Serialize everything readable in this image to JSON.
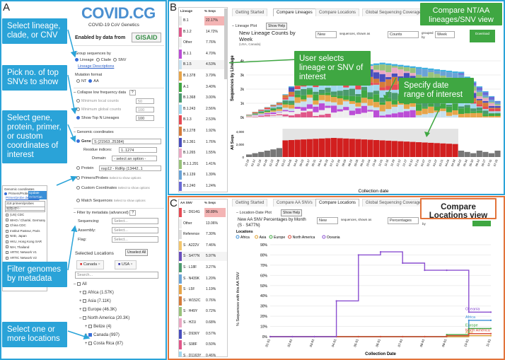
{
  "labels": {
    "A": "A",
    "B": "B",
    "C": "C"
  },
  "callouts": {
    "c1": "Select lineage, clade, or CNV",
    "c2": "Pick no. of top SNVs to show",
    "c3": "Select gene, protein, primer, or custom coordinates of interest",
    "c4": "Filter genomes by metadata",
    "c5": "Select one or more locations",
    "b1": "Compare NT/AA lineages/SNV view",
    "b2": "User selects lineage or SNV of interest",
    "b3": "Specify date range of interest",
    "c6": "Compare Locations view"
  },
  "sidebar": {
    "logo": "COVID.CG",
    "subtitle": "COVID-19 CoV Genetics",
    "enabled_by": "Enabled by data from",
    "gisaid": "GISAID",
    "group_by": "Group sequences by",
    "group_opts": [
      "Lineage",
      "Clade",
      "SNV"
    ],
    "lineage_desc": "Lineage Descriptions",
    "mutation_format": "Mutation format",
    "mut_opts": [
      "NT",
      "AA"
    ],
    "collapse": "Collapse low frequency data",
    "min_local": "Minimum local counts",
    "min_local_val": "50",
    "min_global": "Minimum global counts",
    "min_global_val": "100",
    "show_top": "Show Top N Lineages",
    "show_top_val": "100",
    "genomic": "Genomic coordinates",
    "gene": "Gene",
    "gene_val": "S (21563..25384)",
    "residue": "Residue indices:",
    "residue_val": "1..1274",
    "domain": "Domain:",
    "domain_val": "- select an option -",
    "protein": "Protein",
    "protein_val": "nsp12 - RdRp (13442..1",
    "primers": "Primers/Probes",
    "primers_hint": "Select to show options",
    "custom": "Custom Coordinates",
    "custom_hint": "Select to show options",
    "match": "Match Sequences",
    "match_hint": "Select to show options",
    "filter": "Filter by metadata (advanced)",
    "seq": "Sequencing:",
    "asm": "Assembly:",
    "flag": "Flag:",
    "select_ph": "Select...",
    "sel_loc": "Selected Locations",
    "unselect": "Unselect All",
    "chip1": "Canada",
    "chip2": "USA",
    "search": "Search...",
    "tree": [
      {
        "label": "All",
        "indent": 0,
        "sym": "–"
      },
      {
        "label": "Africa (1.57K)",
        "indent": 1,
        "sym": "+"
      },
      {
        "label": "Asia (7.11K)",
        "indent": 1,
        "sym": "+"
      },
      {
        "label": "Europe (46.3K)",
        "indent": 1,
        "sym": "+"
      },
      {
        "label": "North America (20.3K)",
        "indent": 1,
        "sym": "–"
      },
      {
        "label": "Belize (4)",
        "indent": 2,
        "sym": "+"
      },
      {
        "label": "Canada (997)",
        "indent": 2,
        "sym": "+",
        "checked": true
      },
      {
        "label": "Costa Rica (87)",
        "indent": 2,
        "sym": "+"
      }
    ]
  },
  "primer_panel": {
    "title": "Genomic coordinates",
    "opt": "Primers/Probes",
    "update": "Update Selection",
    "link": "Primer/probe definitions",
    "selected": "218 primers/probes selected...",
    "search": "Search...",
    "items": [
      "(US) CDC",
      "WHO / Charité, Germany",
      "China CDC",
      "Institut Pasteur, Paris",
      "NIID, Japan",
      "HKU, Hong Kong SAR",
      "NIH, Thailand",
      "ARTIC Network V1",
      "ARTIC Network V2",
      "ARTIC Network V3",
      "ARTIC-V3_nCoV-2019_1_LEFT",
      "ARTIC-V3_nCoV-2019_1_RIGHT",
      "ARTIC-V3_nCoV-2019_2_LEFT",
      "ARTIC-V3_nCoV-2019_2_RIGHT"
    ]
  },
  "panelB": {
    "tabs": [
      "Getting Started",
      "Compare Lineages",
      "Compare Locations",
      "Global Sequencing Coverage"
    ],
    "active_tab": 1,
    "col_lineage": "Lineage",
    "col_pct": "% Seqs",
    "lineages": [
      {
        "n": "B.1",
        "p": "22.17%",
        "c": "#e8e8e8"
      },
      {
        "n": "B.1.2",
        "p": "14.72%",
        "c": "#e0578a"
      },
      {
        "n": "Other",
        "p": "7.76%",
        "c": "#eee"
      },
      {
        "n": "B.1.1",
        "p": "4.70%",
        "c": "#bb4dd6"
      },
      {
        "n": "B.1.5",
        "p": "4.53%",
        "c": "#c7e0ee"
      },
      {
        "n": "B.1.378",
        "p": "3.79%",
        "c": "#e7a54a"
      },
      {
        "n": "A.1",
        "p": "3.40%",
        "c": "#3fa742"
      },
      {
        "n": "B.1.368",
        "p": "3.00%",
        "c": "#4a9a6d"
      },
      {
        "n": "B.1.243",
        "p": "2.56%",
        "c": "#a0d8ef"
      },
      {
        "n": "B.1.3",
        "p": "2.53%",
        "c": "#e64a54"
      },
      {
        "n": "B.1.278",
        "p": "1.92%",
        "c": "#d57b3a"
      },
      {
        "n": "B.1.361",
        "p": "1.76%",
        "c": "#4a4fbd"
      },
      {
        "n": "B.1.265",
        "p": "1.55%",
        "c": "#eba8c4"
      },
      {
        "n": "B.1.1.291",
        "p": "1.41%",
        "c": "#98c27a"
      },
      {
        "n": "B.1.139",
        "p": "1.39%",
        "c": "#6aa3d6"
      },
      {
        "n": "B.1.240",
        "p": "1.24%",
        "c": "#6a6ad6"
      }
    ],
    "plot_title": "Lineage Plot",
    "show_help": "Show Help",
    "chart_title": "New Lineage Counts by Week",
    "chart_sub": "(USA, Canada)",
    "new": "New",
    "seq_as": "sequences, shown as",
    "counts": "Counts",
    "grouped": "grouped by",
    "week": "Week",
    "download": "Download",
    "ylabel": "Sequences by Lineage",
    "ylabel2": "All Seqs",
    "xlabel": "Collection date",
    "yticks": [
      "0k",
      "1k",
      "2k",
      "3k",
      "4k"
    ],
    "y2ticks": [
      "0",
      "2,000",
      "4,000"
    ],
    "dates": [
      "12-29",
      "01-12",
      "01-26",
      "02-09",
      "02-23",
      "03-08",
      "03-22",
      "04-05",
      "04-19",
      "05-03",
      "05-17",
      "05-31",
      "06-14",
      "06-28",
      "07-12",
      "07-26",
      "08-09",
      "08-23",
      "09-06",
      "09-20",
      "10-04",
      "10-18",
      "11-01",
      "11-15",
      "11-29",
      "12-13",
      "12-27",
      "01-10",
      "01-24",
      "02-07",
      "02-21",
      "03-07",
      "03-21",
      "04-04",
      "04-18",
      "05-02",
      "05-16",
      "05-30",
      "06-13",
      "06-27",
      "07-11",
      "07-25"
    ]
  },
  "panelC": {
    "tabs": [
      "Getting Started",
      "Compare AA SNVs",
      "Compare Locations",
      "Global Sequencing Coverage"
    ],
    "active_tab": 2,
    "col_snv": "AA SNV",
    "col_pct": "% Seqs",
    "snvs": [
      {
        "n": "S · D614G",
        "p": "90.89%",
        "c": "#e64a54"
      },
      {
        "n": "Other",
        "p": "13.06%",
        "c": "#eee"
      },
      {
        "n": "Reference",
        "p": "7.30%",
        "c": "#ddd"
      },
      {
        "n": "S · A222V",
        "p": "7.46%",
        "c": "#f2c66d"
      },
      {
        "n": "S · S477N",
        "p": "5.97%",
        "c": "#6a4fbd"
      },
      {
        "n": "S · L18F",
        "p": "3.27%",
        "c": "#4a9a6d"
      },
      {
        "n": "S · N439K",
        "p": "1.20%",
        "c": "#6aa3d6"
      },
      {
        "n": "S · L5F",
        "p": "1.19%",
        "c": "#e7a54a"
      },
      {
        "n": "S · W152C",
        "p": "0.76%",
        "c": "#d57b3a"
      },
      {
        "n": "S · H49Y",
        "p": "0.72%",
        "c": "#98c27a"
      },
      {
        "n": "S · H21I",
        "p": "0.68%",
        "c": "#eba8c4"
      },
      {
        "n": "S · D936Y",
        "p": "0.57%",
        "c": "#4a4fbd"
      },
      {
        "n": "S · S98F",
        "p": "0.50%",
        "c": "#e0578a"
      },
      {
        "n": "S · D1163Y",
        "p": "0.46%",
        "c": "#a0d8ef"
      }
    ],
    "plot_title": "Location-Date Plot",
    "show_help": "Show Help",
    "chart_title": "New AA SNV Percentages by Month (S · S477N)",
    "new": "New",
    "seq_as": "sequences, shown as",
    "pct": "Percentages",
    "by": "by",
    "legend_title": "Locations",
    "ylabel": "% Sequences with this AA SNV",
    "xlabel": "Collection Date"
  },
  "chart_data": [
    {
      "type": "line",
      "title": "New AA SNV Percentages by Month (S · S477N)",
      "xlabel": "Collection Date",
      "ylabel": "% Sequences with this AA SNV",
      "ylim": [
        0,
        90
      ],
      "yticks": [
        "0%",
        "10%",
        "20%",
        "30%",
        "40%",
        "50%",
        "60%",
        "70%",
        "80%",
        "90%"
      ],
      "x": [
        "01-01",
        "02-01",
        "03-01",
        "04-01",
        "05-01",
        "06-01",
        "07-01",
        "08-01",
        "09-01",
        "10-01",
        "11-01"
      ],
      "series": [
        {
          "name": "Africa",
          "color": "#3a8fd8",
          "values": [
            0,
            0,
            0,
            0,
            0,
            0,
            0,
            0,
            0,
            16,
            16
          ]
        },
        {
          "name": "Asia",
          "color": "#e0a030",
          "values": [
            0,
            0,
            0,
            0,
            0,
            0,
            0,
            0,
            0,
            1,
            1
          ]
        },
        {
          "name": "Europe",
          "color": "#3fa742",
          "values": [
            0,
            0,
            0,
            0,
            0,
            0,
            0,
            0,
            2,
            8,
            8
          ]
        },
        {
          "name": "North America",
          "color": "#d64a3a",
          "values": [
            0,
            0,
            0,
            0,
            0,
            0,
            0,
            0,
            1,
            3,
            3
          ]
        },
        {
          "name": "Oceania",
          "color": "#8a4fd0",
          "values": [
            0,
            0,
            0,
            35,
            80,
            83,
            72,
            65,
            65,
            24,
            24
          ]
        }
      ],
      "legend_position": "top"
    }
  ]
}
